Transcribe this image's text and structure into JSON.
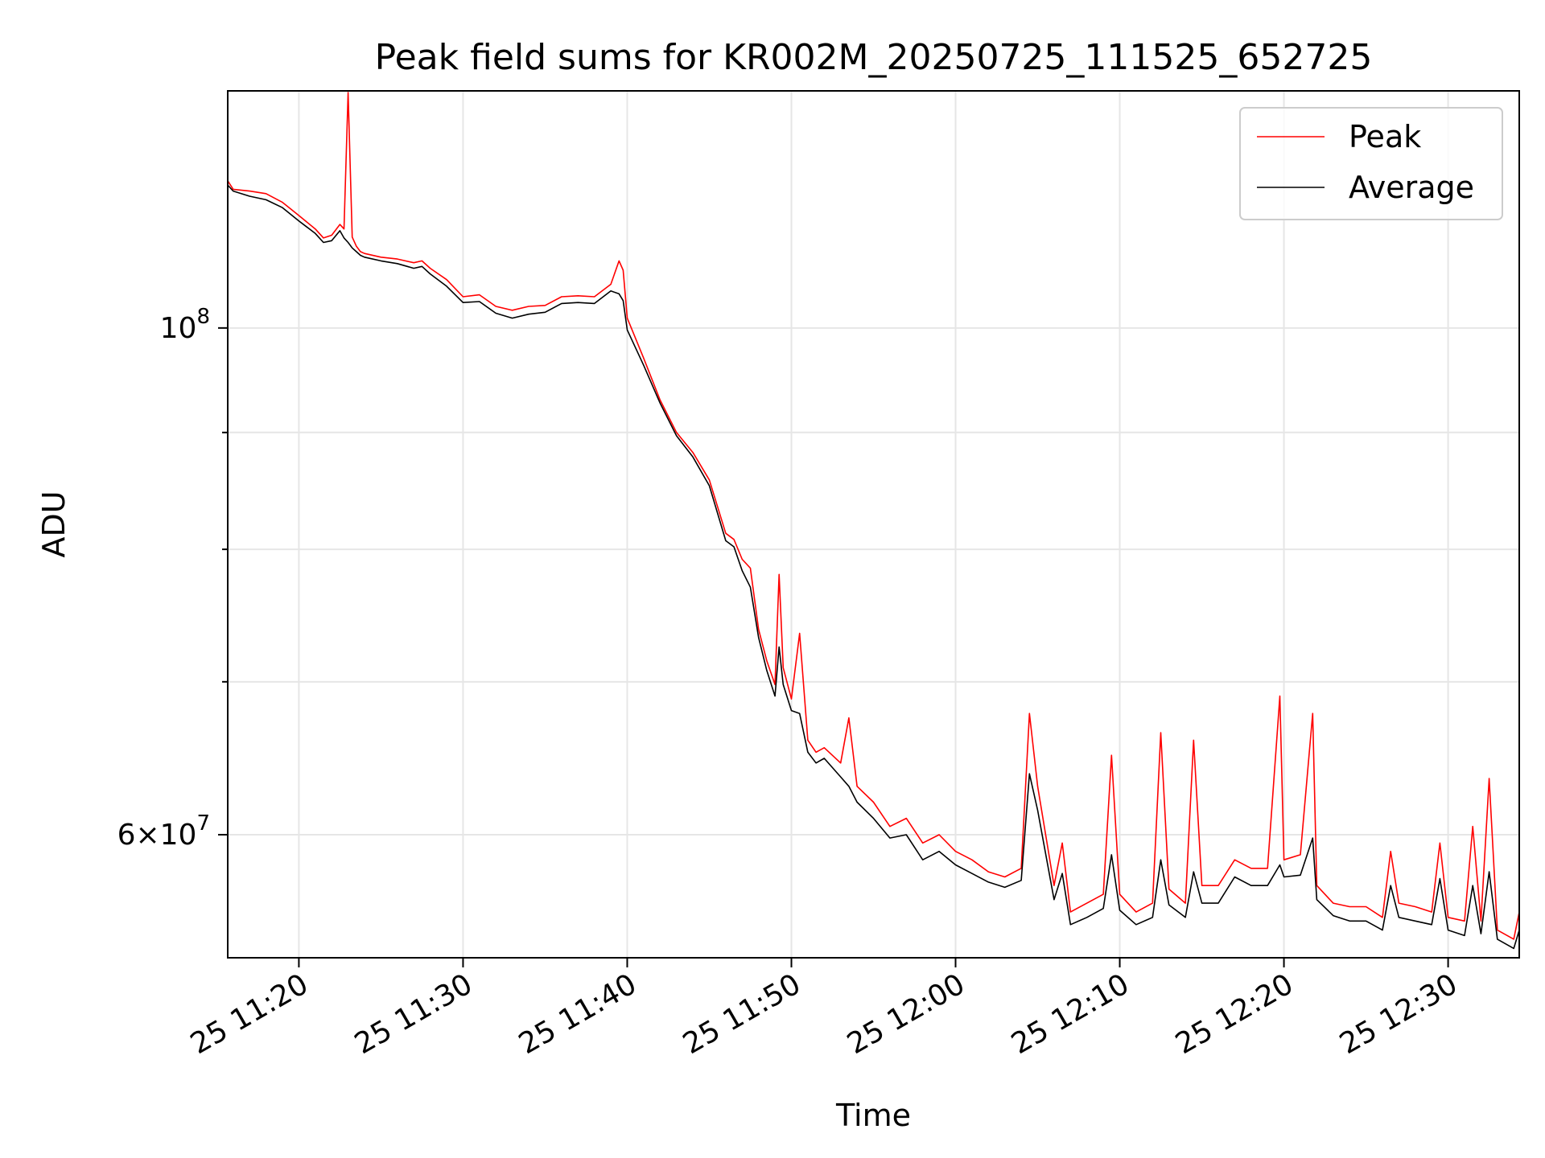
{
  "chart_data": {
    "type": "line",
    "title": "Peak field sums for KR002M_20250725_111525_652725",
    "xlabel": "Time",
    "ylabel": "ADU",
    "yscale": "log",
    "ylim": [
      53000000,
      127000000
    ],
    "xlim_minutes": [
      "11:15:40",
      "12:34:20"
    ],
    "x_ticks": [
      "25 11:20",
      "25 11:30",
      "25 11:40",
      "25 11:50",
      "25 12:00",
      "25 12:10",
      "25 12:20",
      "25 12:30"
    ],
    "x_tick_times": [
      "11:20",
      "11:30",
      "11:40",
      "11:50",
      "12:00",
      "12:10",
      "12:20",
      "12:30"
    ],
    "y_ticks": [
      {
        "value": 100000000,
        "mantissa": "10",
        "exponent": "8"
      },
      {
        "value": 60000000,
        "mantissa": "6×10",
        "exponent": "7"
      }
    ],
    "y_minor_ticks": [
      70000000,
      80000000,
      90000000
    ],
    "grid": true,
    "legend": "upper-right",
    "x": [
      "11:15:40",
      "11:16:00",
      "11:17:00",
      "11:18:00",
      "11:19:00",
      "11:20:00",
      "11:21:00",
      "11:21:30",
      "11:22:00",
      "11:22:30",
      "11:22:45",
      "11:23:00",
      "11:23:15",
      "11:23:30",
      "11:23:45",
      "11:24:00",
      "11:25:00",
      "11:26:00",
      "11:27:00",
      "11:27:30",
      "11:28:00",
      "11:29:00",
      "11:30:00",
      "11:31:00",
      "11:32:00",
      "11:33:00",
      "11:34:00",
      "11:35:00",
      "11:36:00",
      "11:37:00",
      "11:38:00",
      "11:39:00",
      "11:39:30",
      "11:39:45",
      "11:40:00",
      "11:41:00",
      "11:42:00",
      "11:43:00",
      "11:44:00",
      "11:45:00",
      "11:46:00",
      "11:46:30",
      "11:47:00",
      "11:47:30",
      "11:48:00",
      "11:48:30",
      "11:49:00",
      "11:49:15",
      "11:49:30",
      "11:50:00",
      "11:50:30",
      "11:51:00",
      "11:51:30",
      "11:52:00",
      "11:53:00",
      "11:53:30",
      "11:54:00",
      "11:55:00",
      "11:56:00",
      "11:57:00",
      "11:58:00",
      "11:59:00",
      "12:00:00",
      "12:01:00",
      "12:02:00",
      "12:03:00",
      "12:04:00",
      "12:04:30",
      "12:05:00",
      "12:06:00",
      "12:06:30",
      "12:07:00",
      "12:08:00",
      "12:09:00",
      "12:09:30",
      "12:10:00",
      "12:11:00",
      "12:12:00",
      "12:12:30",
      "12:13:00",
      "12:14:00",
      "12:14:30",
      "12:15:00",
      "12:16:00",
      "12:17:00",
      "12:18:00",
      "12:19:00",
      "12:19:45",
      "12:20:00",
      "12:21:00",
      "12:21:45",
      "12:22:00",
      "12:23:00",
      "12:24:00",
      "12:25:00",
      "12:26:00",
      "12:26:30",
      "12:27:00",
      "12:28:00",
      "12:29:00",
      "12:29:30",
      "12:30:00",
      "12:31:00",
      "12:31:30",
      "12:32:00",
      "12:32:30",
      "12:33:00",
      "12:34:00",
      "12:34:20"
    ],
    "series": [
      {
        "name": "Peak",
        "color": "#ff0000",
        "values": [
          116000000,
          115000000,
          114800000,
          114500000,
          113500000,
          112000000,
          110500000,
          109500000,
          109800000,
          111000000,
          110500000,
          126800000,
          109600000,
          108600000,
          108000000,
          107800000,
          107400000,
          107200000,
          106800000,
          107000000,
          106200000,
          105000000,
          103200000,
          103400000,
          102200000,
          101800000,
          102200000,
          102300000,
          103200000,
          103300000,
          103200000,
          104500000,
          107000000,
          106000000,
          101000000,
          97000000,
          93000000,
          90000000,
          88200000,
          85800000,
          81300000,
          80800000,
          79200000,
          78500000,
          73800000,
          71500000,
          69800000,
          78000000,
          71000000,
          68800000,
          73500000,
          66000000,
          65200000,
          65500000,
          64500000,
          67500000,
          63000000,
          62000000,
          60500000,
          61000000,
          59500000,
          60000000,
          59000000,
          58500000,
          57800000,
          57500000,
          58000000,
          67800000,
          63000000,
          57000000,
          59500000,
          55500000,
          56000000,
          56500000,
          65000000,
          56500000,
          55500000,
          56000000,
          66500000,
          56800000,
          56000000,
          66000000,
          57000000,
          57000000,
          58500000,
          58000000,
          58000000,
          69000000,
          58500000,
          58800000,
          67800000,
          57000000,
          56000000,
          55800000,
          55800000,
          55200000,
          59000000,
          56000000,
          55800000,
          55500000,
          59500000,
          55200000,
          55000000,
          60500000,
          55000000,
          63500000,
          54500000,
          54000000,
          55500000
        ]
      },
      {
        "name": "Average",
        "color": "#000000",
        "values": [
          115500000,
          114800000,
          114200000,
          113800000,
          112900000,
          111400000,
          110000000,
          109000000,
          109200000,
          110300000,
          109500000,
          109000000,
          108400000,
          108000000,
          107600000,
          107400000,
          107000000,
          106700000,
          106200000,
          106400000,
          105600000,
          104300000,
          102600000,
          102700000,
          101500000,
          101000000,
          101400000,
          101600000,
          102500000,
          102600000,
          102500000,
          103800000,
          103500000,
          102800000,
          99800000,
          96300000,
          92700000,
          89700000,
          87800000,
          85300000,
          80700000,
          80200000,
          78300000,
          77000000,
          73200000,
          70800000,
          69000000,
          72500000,
          69800000,
          68000000,
          67800000,
          65200000,
          64500000,
          64800000,
          63600000,
          63000000,
          62000000,
          61000000,
          59800000,
          60000000,
          58500000,
          59000000,
          58200000,
          57700000,
          57200000,
          56900000,
          57300000,
          63800000,
          61500000,
          56200000,
          57700000,
          54800000,
          55200000,
          55700000,
          58800000,
          55600000,
          54800000,
          55200000,
          58500000,
          55900000,
          55200000,
          57800000,
          56000000,
          56000000,
          57500000,
          57000000,
          57000000,
          58200000,
          57500000,
          57600000,
          59800000,
          56200000,
          55300000,
          55000000,
          55000000,
          54500000,
          57000000,
          55200000,
          55000000,
          54800000,
          57400000,
          54500000,
          54200000,
          57000000,
          54300000,
          57800000,
          54000000,
          53500000,
          54500000
        ]
      }
    ]
  }
}
